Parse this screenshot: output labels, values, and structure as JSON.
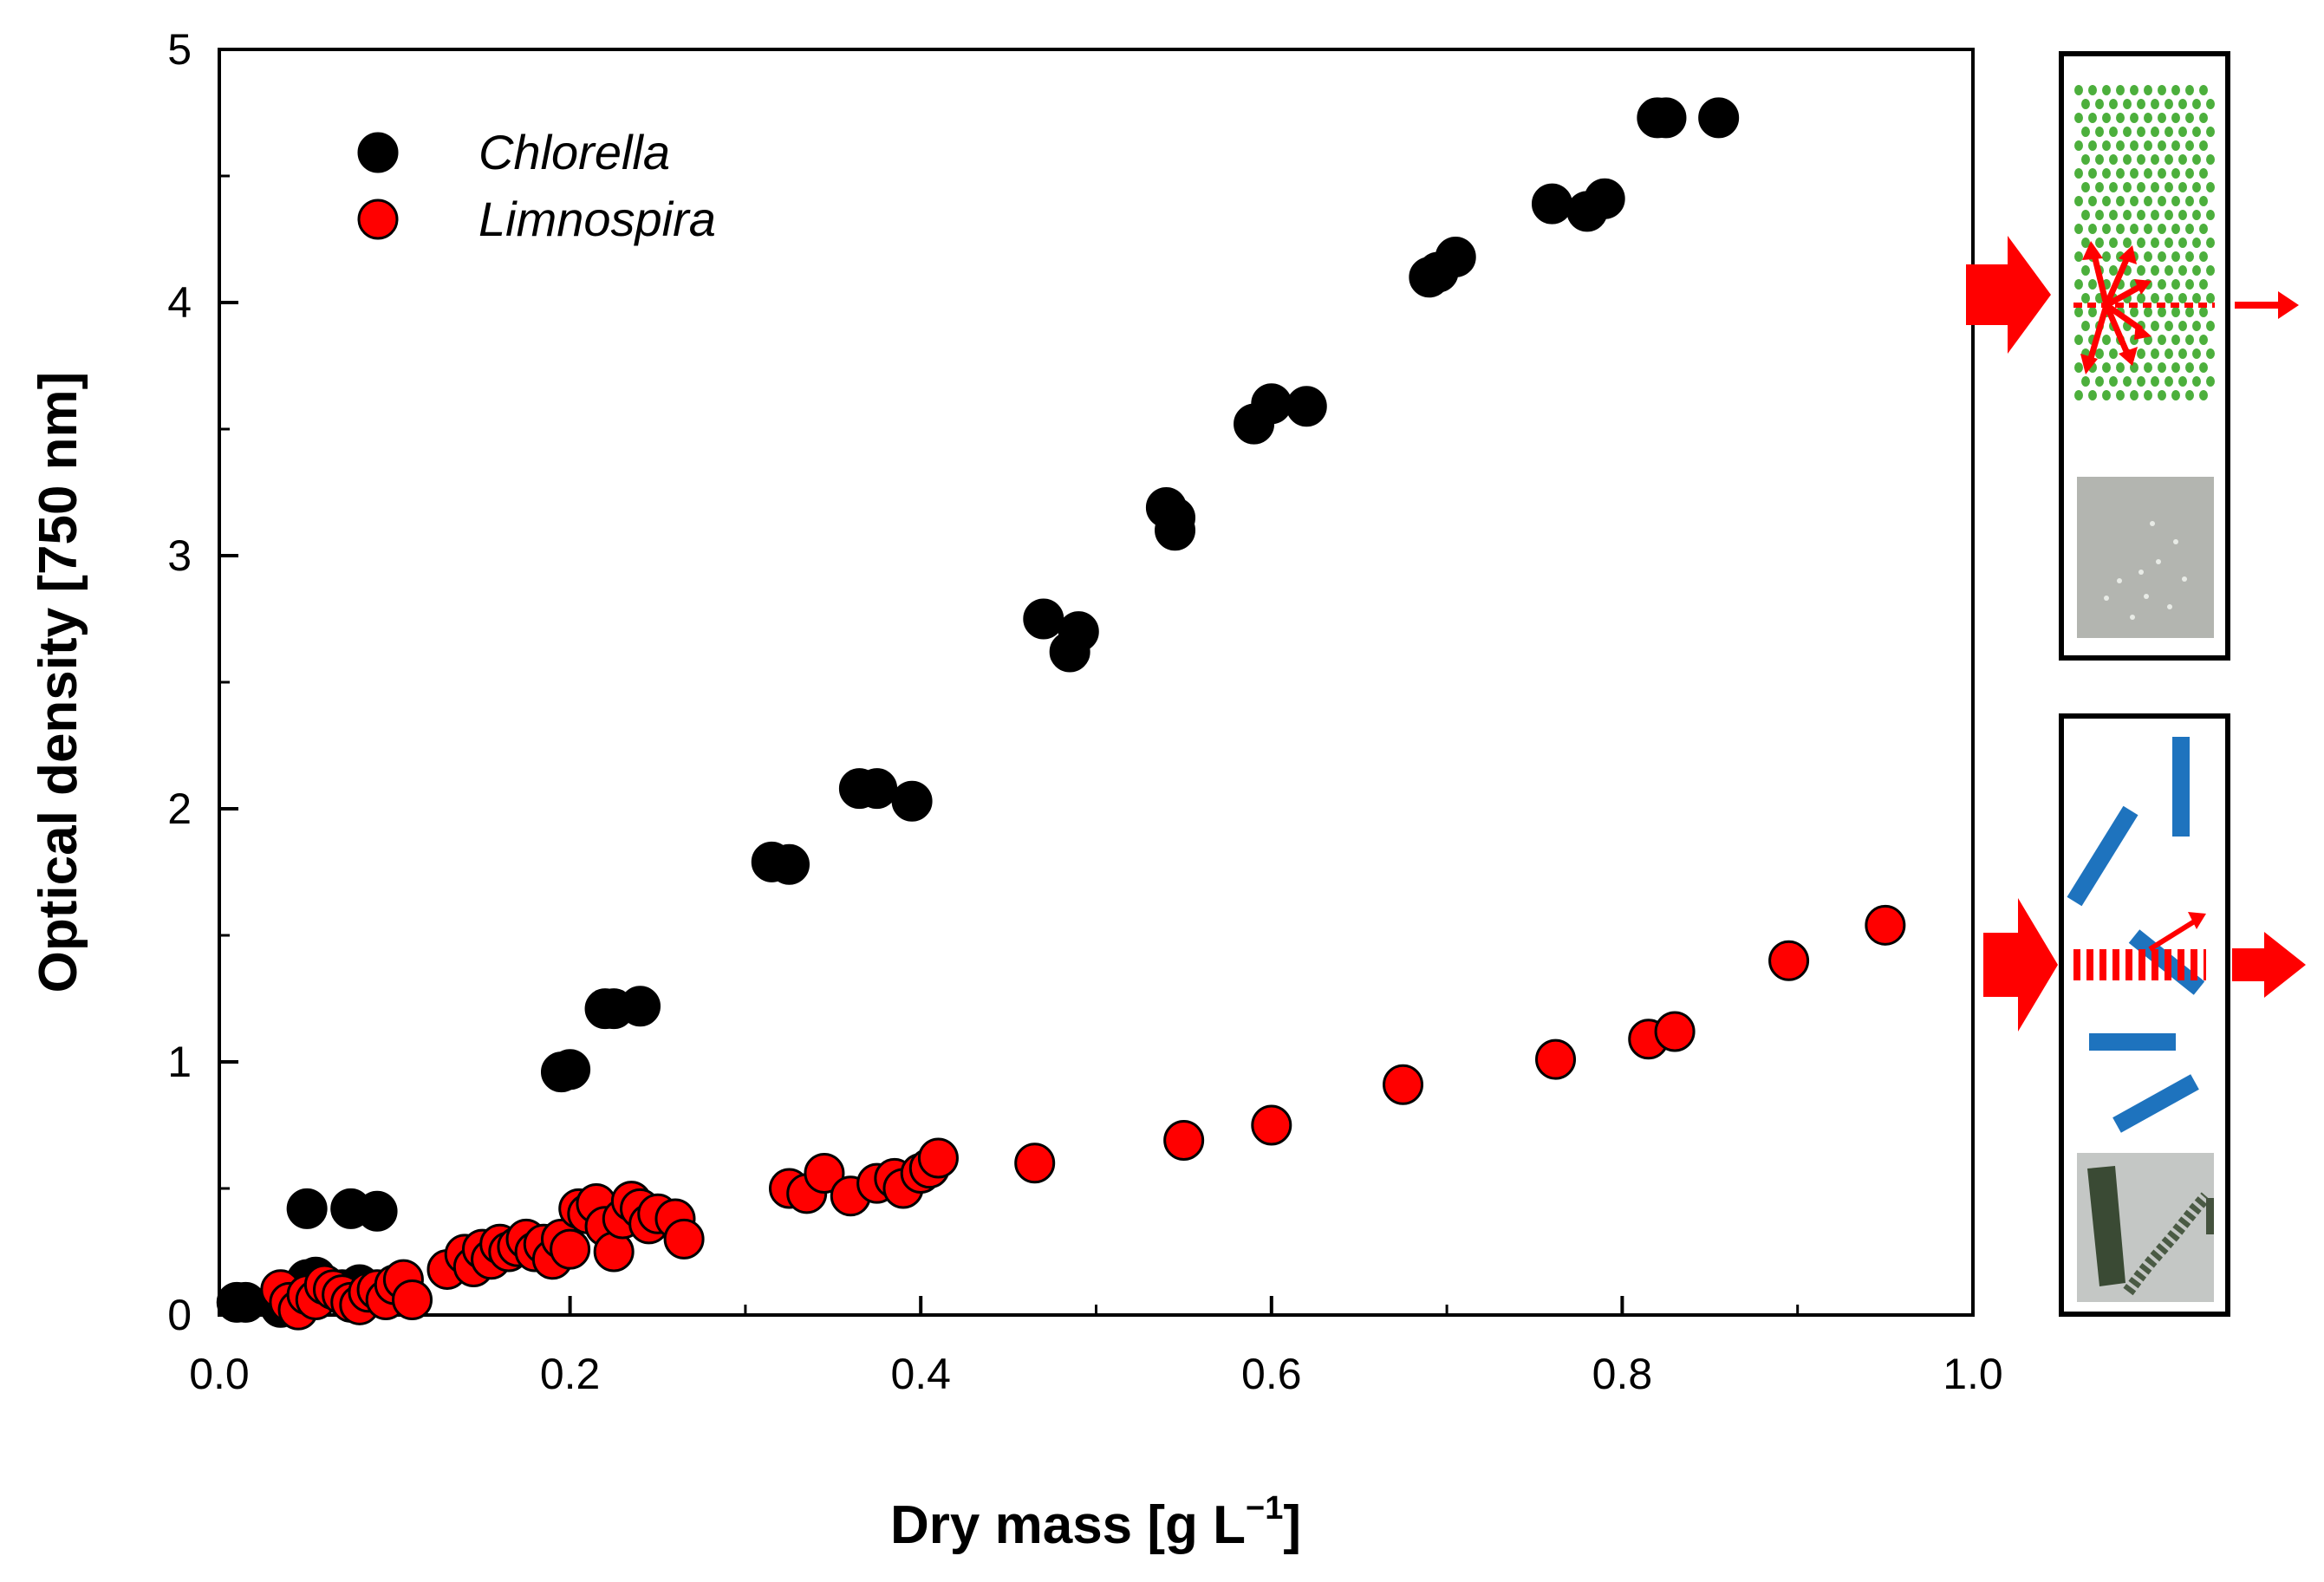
{
  "colors": {
    "chlorella": "#000000",
    "limnospira": "#ff0000",
    "arrow": "#ff0000",
    "cell_green": "#4caf3c",
    "filament_blue": "#1e73be"
  },
  "inset_icons": {
    "top": "chlorella-scattering-schematic",
    "bottom": "limnospira-scattering-schematic"
  },
  "chart_data": {
    "type": "scatter",
    "xlabel_main": "Dry mass [g L",
    "xlabel_sup": "−1",
    "xlabel_end": "]",
    "ylabel": "Optical density [750 nm]",
    "xlim": [
      0,
      1.0
    ],
    "ylim": [
      0,
      5
    ],
    "x_ticks": [
      "0.0",
      "0.2",
      "0.4",
      "0.6",
      "0.8",
      "1.0"
    ],
    "y_ticks": [
      "0",
      "1",
      "2",
      "3",
      "4",
      "5"
    ],
    "legend_position": "top-left",
    "grid": false,
    "series": [
      {
        "name": "Chlorella",
        "points": [
          [
            0.01,
            0.05
          ],
          [
            0.015,
            0.05
          ],
          [
            0.035,
            0.03
          ],
          [
            0.045,
            0.1
          ],
          [
            0.05,
            0.14
          ],
          [
            0.055,
            0.15
          ],
          [
            0.05,
            0.42
          ],
          [
            0.075,
            0.42
          ],
          [
            0.09,
            0.41
          ],
          [
            0.07,
            0.1
          ],
          [
            0.08,
            0.12
          ],
          [
            0.195,
            0.96
          ],
          [
            0.2,
            0.97
          ],
          [
            0.22,
            1.21
          ],
          [
            0.225,
            1.21
          ],
          [
            0.24,
            1.22
          ],
          [
            0.315,
            1.79
          ],
          [
            0.325,
            1.78
          ],
          [
            0.365,
            2.08
          ],
          [
            0.375,
            2.08
          ],
          [
            0.395,
            2.03
          ],
          [
            0.47,
            2.75
          ],
          [
            0.485,
            2.62
          ],
          [
            0.49,
            2.7
          ],
          [
            0.54,
            3.19
          ],
          [
            0.545,
            3.1
          ],
          [
            0.545,
            3.15
          ],
          [
            0.59,
            3.52
          ],
          [
            0.6,
            3.6
          ],
          [
            0.62,
            3.59
          ],
          [
            0.69,
            4.1
          ],
          [
            0.695,
            4.12
          ],
          [
            0.705,
            4.18
          ],
          [
            0.76,
            4.39
          ],
          [
            0.78,
            4.36
          ],
          [
            0.79,
            4.41
          ],
          [
            0.82,
            4.73
          ],
          [
            0.825,
            4.73
          ],
          [
            0.855,
            4.73
          ]
        ]
      },
      {
        "name": "Limnospira",
        "points": [
          [
            0.035,
            0.1
          ],
          [
            0.04,
            0.05
          ],
          [
            0.045,
            0.02
          ],
          [
            0.05,
            0.08
          ],
          [
            0.055,
            0.06
          ],
          [
            0.06,
            0.12
          ],
          [
            0.065,
            0.1
          ],
          [
            0.07,
            0.08
          ],
          [
            0.075,
            0.05
          ],
          [
            0.08,
            0.04
          ],
          [
            0.085,
            0.09
          ],
          [
            0.09,
            0.1
          ],
          [
            0.095,
            0.06
          ],
          [
            0.1,
            0.12
          ],
          [
            0.105,
            0.14
          ],
          [
            0.11,
            0.06
          ],
          [
            0.13,
            0.18
          ],
          [
            0.14,
            0.24
          ],
          [
            0.145,
            0.19
          ],
          [
            0.15,
            0.26
          ],
          [
            0.155,
            0.22
          ],
          [
            0.16,
            0.28
          ],
          [
            0.165,
            0.25
          ],
          [
            0.17,
            0.27
          ],
          [
            0.175,
            0.3
          ],
          [
            0.18,
            0.25
          ],
          [
            0.185,
            0.28
          ],
          [
            0.19,
            0.22
          ],
          [
            0.195,
            0.3
          ],
          [
            0.2,
            0.26
          ],
          [
            0.205,
            0.42
          ],
          [
            0.21,
            0.4
          ],
          [
            0.215,
            0.44
          ],
          [
            0.22,
            0.35
          ],
          [
            0.225,
            0.25
          ],
          [
            0.23,
            0.38
          ],
          [
            0.235,
            0.45
          ],
          [
            0.24,
            0.42
          ],
          [
            0.245,
            0.36
          ],
          [
            0.25,
            0.4
          ],
          [
            0.26,
            0.38
          ],
          [
            0.265,
            0.3
          ],
          [
            0.325,
            0.5
          ],
          [
            0.335,
            0.48
          ],
          [
            0.345,
            0.56
          ],
          [
            0.36,
            0.47
          ],
          [
            0.375,
            0.52
          ],
          [
            0.385,
            0.54
          ],
          [
            0.39,
            0.5
          ],
          [
            0.4,
            0.56
          ],
          [
            0.405,
            0.58
          ],
          [
            0.41,
            0.62
          ],
          [
            0.465,
            0.6
          ],
          [
            0.55,
            0.69
          ],
          [
            0.6,
            0.75
          ],
          [
            0.675,
            0.91
          ],
          [
            0.762,
            1.01
          ],
          [
            0.815,
            1.09
          ],
          [
            0.83,
            1.12
          ],
          [
            0.895,
            1.4
          ],
          [
            0.95,
            1.54
          ]
        ]
      }
    ]
  }
}
